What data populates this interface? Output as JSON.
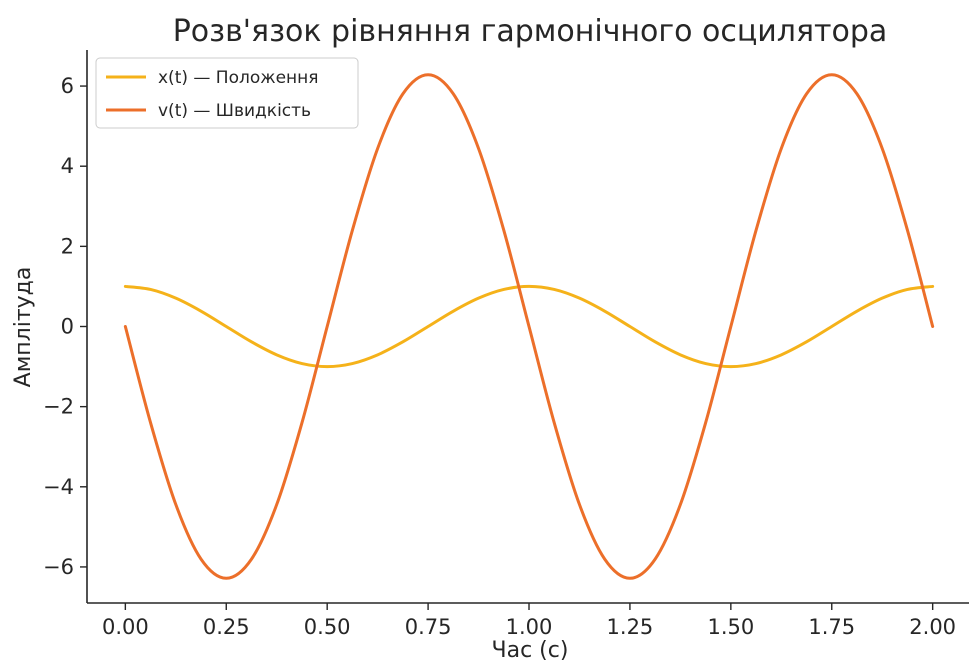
{
  "chart_data": {
    "type": "line",
    "title": "Розв'язок рівняння гармонічного осцилятора",
    "xlabel": "Час (с)",
    "ylabel": "Амплітуда",
    "xlim": [
      -0.095,
      2.09
    ],
    "ylim": [
      -6.9,
      6.9
    ],
    "xticks": [
      0.0,
      0.25,
      0.5,
      0.75,
      1.0,
      1.25,
      1.5,
      1.75,
      2.0
    ],
    "xtick_labels": [
      "0.00",
      "0.25",
      "0.50",
      "0.75",
      "1.00",
      "1.25",
      "1.50",
      "1.75",
      "2.00"
    ],
    "yticks": [
      -6,
      -4,
      -2,
      0,
      2,
      4,
      6
    ],
    "ytick_labels": [
      "−6",
      "−4",
      "−2",
      "0",
      "2",
      "4",
      "6"
    ],
    "grid": false,
    "legend_position": "top-left",
    "series": [
      {
        "name": "x(t) — Положення",
        "color": "#F5B21A",
        "x": [
          0.0,
          0.0625,
          0.125,
          0.1875,
          0.25,
          0.3125,
          0.375,
          0.4375,
          0.5,
          0.5625,
          0.625,
          0.6875,
          0.75,
          0.8125,
          0.875,
          0.9375,
          1.0,
          1.0625,
          1.125,
          1.1875,
          1.25,
          1.3125,
          1.375,
          1.4375,
          1.5,
          1.5625,
          1.625,
          1.6875,
          1.75,
          1.8125,
          1.875,
          1.9375,
          2.0
        ],
        "y": [
          1.0,
          0.924,
          0.707,
          0.383,
          0.0,
          -0.383,
          -0.707,
          -0.924,
          -1.0,
          -0.924,
          -0.707,
          -0.383,
          0.0,
          0.383,
          0.707,
          0.924,
          1.0,
          0.924,
          0.707,
          0.383,
          0.0,
          -0.383,
          -0.707,
          -0.924,
          -1.0,
          -0.924,
          -0.707,
          -0.383,
          0.0,
          0.383,
          0.707,
          0.924,
          1.0
        ]
      },
      {
        "name": "v(t) — Швидкість",
        "color": "#EC6F2A",
        "x": [
          0.0,
          0.0625,
          0.125,
          0.1875,
          0.25,
          0.3125,
          0.375,
          0.4375,
          0.5,
          0.5625,
          0.625,
          0.6875,
          0.75,
          0.8125,
          0.875,
          0.9375,
          1.0,
          1.0625,
          1.125,
          1.1875,
          1.25,
          1.3125,
          1.375,
          1.4375,
          1.5,
          1.5625,
          1.625,
          1.6875,
          1.75,
          1.8125,
          1.875,
          1.9375,
          2.0
        ],
        "y": [
          0.0,
          -2.404,
          -4.443,
          -5.805,
          -6.283,
          -5.805,
          -4.443,
          -2.404,
          0.0,
          2.404,
          4.443,
          5.805,
          6.283,
          5.805,
          4.443,
          2.404,
          0.0,
          -2.404,
          -4.443,
          -5.805,
          -6.283,
          -5.805,
          -4.443,
          -2.404,
          0.0,
          2.404,
          4.443,
          5.805,
          6.283,
          5.805,
          4.443,
          2.404,
          0.0
        ]
      }
    ]
  }
}
